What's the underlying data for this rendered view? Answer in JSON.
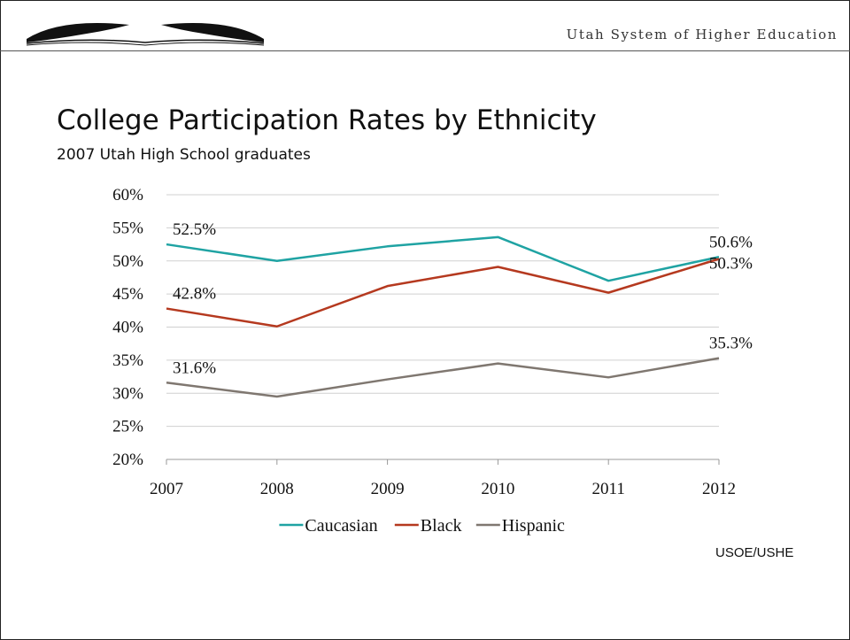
{
  "header": {
    "org_name": "Utah System of Higher Education",
    "logo_icon": "book-arc-logo-icon"
  },
  "slide": {
    "title": "College Participation Rates by Ethnicity",
    "subtitle": "2007 Utah High School graduates",
    "source": "USOE/USHE"
  },
  "chart_data": {
    "type": "line",
    "title": "",
    "xlabel": "",
    "ylabel": "",
    "categories": [
      "2007",
      "2008",
      "2009",
      "2010",
      "2011",
      "2012"
    ],
    "y_ticks": [
      "20%",
      "25%",
      "30%",
      "35%",
      "40%",
      "45%",
      "50%",
      "55%",
      "60%"
    ],
    "ylim": [
      20,
      60
    ],
    "grid": true,
    "legend": "bottom",
    "series": [
      {
        "name": "Caucasian",
        "color": "#1fa3a3",
        "values": [
          52.5,
          50.0,
          52.2,
          53.6,
          47.0,
          50.6
        ]
      },
      {
        "name": "Black",
        "color": "#b5391f",
        "values": [
          42.8,
          40.1,
          46.2,
          49.1,
          45.2,
          50.3
        ]
      },
      {
        "name": "Hispanic",
        "color": "#7f7770",
        "values": [
          31.6,
          29.5,
          32.1,
          34.5,
          32.4,
          35.3
        ]
      }
    ],
    "data_labels": [
      {
        "series": 0,
        "point": 0,
        "text": "52.5%"
      },
      {
        "series": 0,
        "point": 5,
        "text": "50.6%"
      },
      {
        "series": 1,
        "point": 0,
        "text": "42.8%"
      },
      {
        "series": 1,
        "point": 5,
        "text": "50.3%"
      },
      {
        "series": 2,
        "point": 0,
        "text": "31.6%"
      },
      {
        "series": 2,
        "point": 5,
        "text": "35.3%"
      }
    ]
  }
}
